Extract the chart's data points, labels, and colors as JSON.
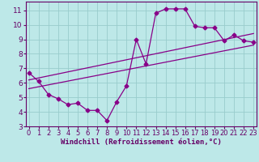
{
  "xlabel": "Windchill (Refroidissement éolien,°C)",
  "bg_color": "#bde8e8",
  "line_color": "#880088",
  "grid_color": "#99cccc",
  "x_data": [
    0,
    1,
    2,
    3,
    4,
    5,
    6,
    7,
    8,
    9,
    10,
    11,
    12,
    13,
    14,
    15,
    16,
    17,
    18,
    19,
    20,
    21,
    22,
    23
  ],
  "y_main": [
    6.7,
    6.1,
    5.2,
    4.9,
    4.5,
    4.6,
    4.1,
    4.1,
    3.4,
    4.7,
    5.8,
    9.0,
    7.3,
    10.8,
    11.1,
    11.1,
    11.1,
    9.9,
    9.8,
    9.8,
    8.9,
    9.3,
    8.9,
    8.8
  ],
  "trend1_x": [
    0,
    23
  ],
  "trend1_y": [
    5.6,
    8.6
  ],
  "trend2_x": [
    0,
    23
  ],
  "trend2_y": [
    6.2,
    9.4
  ],
  "xlim": [
    -0.3,
    23.3
  ],
  "ylim": [
    3.0,
    11.6
  ],
  "yticks": [
    3,
    4,
    5,
    6,
    7,
    8,
    9,
    10,
    11
  ],
  "xticks": [
    0,
    1,
    2,
    3,
    4,
    5,
    6,
    7,
    8,
    9,
    10,
    11,
    12,
    13,
    14,
    15,
    16,
    17,
    18,
    19,
    20,
    21,
    22,
    23
  ],
  "marker": "D",
  "markersize": 2.5,
  "linewidth": 0.9,
  "xlabel_fontsize": 6.5,
  "tick_fontsize": 6.0,
  "spine_color": "#660066",
  "tick_color": "#660066",
  "label_color": "#660066"
}
